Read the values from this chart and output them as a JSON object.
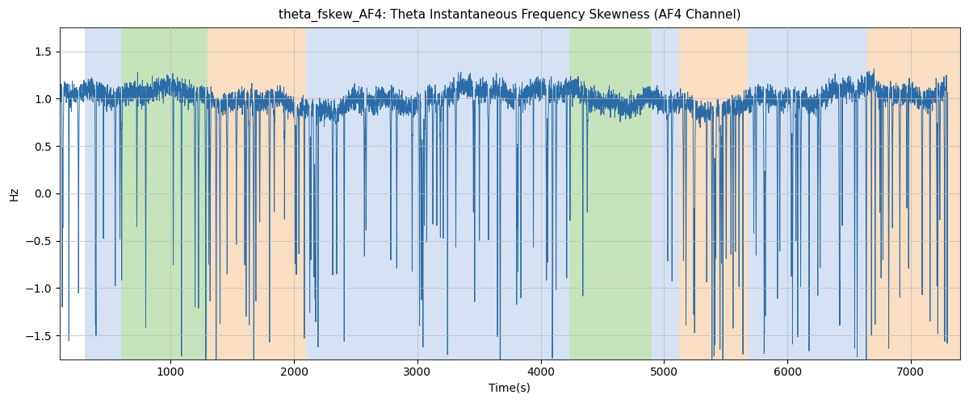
{
  "title": "theta_fskew_AF4: Theta Instantaneous Frequency Skewness (AF4 Channel)",
  "xlabel": "Time(s)",
  "ylabel": "Hz",
  "xlim": [
    100,
    7400
  ],
  "ylim": [
    -1.75,
    1.75
  ],
  "line_color": "#2b6ca8",
  "line_width": 0.7,
  "background_color": "#ffffff",
  "grid_color": "#bbbbbb",
  "bg_bands": [
    {
      "xmin": 300,
      "xmax": 600,
      "color": "#aec6e8",
      "alpha": 0.5
    },
    {
      "xmin": 600,
      "xmax": 1300,
      "color": "#90c978",
      "alpha": 0.5
    },
    {
      "xmin": 1300,
      "xmax": 2100,
      "color": "#f5c89a",
      "alpha": 0.6
    },
    {
      "xmin": 2100,
      "xmax": 4230,
      "color": "#aec6e8",
      "alpha": 0.5
    },
    {
      "xmin": 4230,
      "xmax": 4450,
      "color": "#90c978",
      "alpha": 0.5
    },
    {
      "xmin": 4450,
      "xmax": 4900,
      "color": "#90c978",
      "alpha": 0.5
    },
    {
      "xmin": 4900,
      "xmax": 5120,
      "color": "#aec6e8",
      "alpha": 0.5
    },
    {
      "xmin": 5120,
      "xmax": 5680,
      "color": "#f5c89a",
      "alpha": 0.6
    },
    {
      "xmin": 5680,
      "xmax": 6650,
      "color": "#aec6e8",
      "alpha": 0.5
    },
    {
      "xmin": 6650,
      "xmax": 7400,
      "color": "#f5c89a",
      "alpha": 0.6
    }
  ],
  "xticks": [
    1000,
    2000,
    3000,
    4000,
    5000,
    6000,
    7000
  ],
  "yticks": [
    -1.5,
    -1.0,
    -0.5,
    0.0,
    0.5,
    1.0,
    1.5
  ],
  "figsize": [
    12.0,
    5.0
  ],
  "dpi": 100
}
